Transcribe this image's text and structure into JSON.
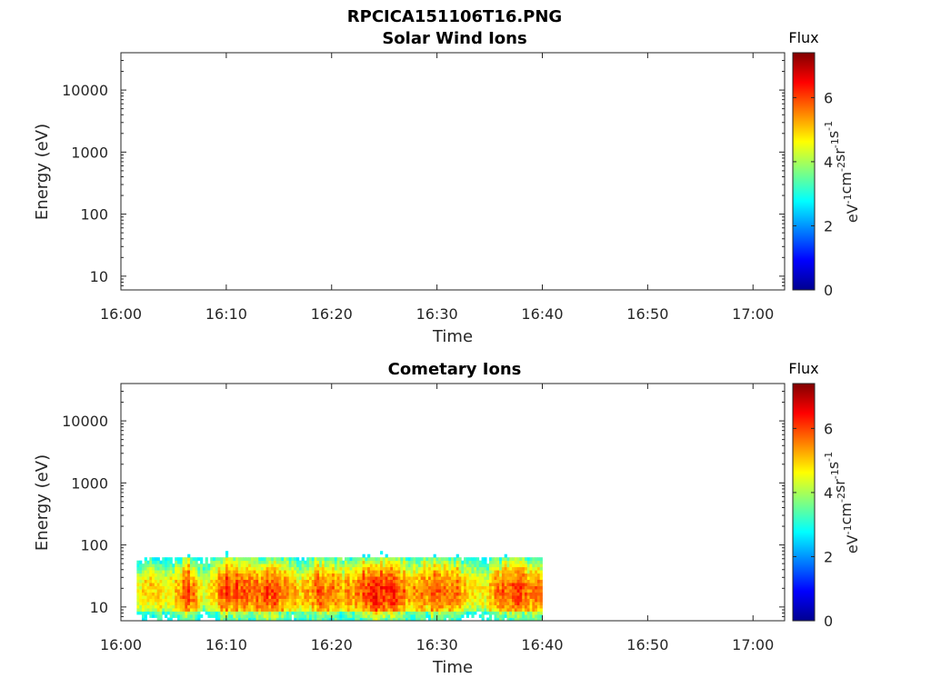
{
  "figure": {
    "title": "RPCICA151106T16.PNG"
  },
  "colorbar": {
    "label": "Flux",
    "unit_base": "eV",
    "unit_parts": [
      {
        "base": "eV",
        "exp": "-1"
      },
      {
        "base": "cm",
        "exp": "-2"
      },
      {
        "base": "sr",
        "exp": "-1"
      },
      {
        "base": "s",
        "exp": "-1"
      }
    ],
    "min": 0,
    "max": 7.4,
    "ticks": [
      "0",
      "2",
      "4",
      "6"
    ],
    "tick_values": [
      0,
      2,
      4,
      6
    ],
    "colormap": "jet",
    "colors": [
      "#00008F",
      "#0000FF",
      "#00FFFF",
      "#FFFF00",
      "#FF0000",
      "#800000"
    ]
  },
  "chart_data": [
    {
      "type": "heatmap",
      "title": "Solar Wind Ions",
      "xlabel": "Time",
      "ylabel": "Energy (eV)",
      "xticks": [
        "16:00",
        "16:10",
        "16:20",
        "16:30",
        "16:40",
        "16:50",
        "17:00"
      ],
      "xtick_minutes": [
        0,
        10,
        20,
        30,
        40,
        50,
        60
      ],
      "xlim_minutes": [
        0,
        63
      ],
      "yscale": "log",
      "ylim": [
        6,
        40000
      ],
      "yticks": [
        "10",
        "100",
        "1000",
        "10000"
      ],
      "ytick_values": [
        10,
        100,
        1000,
        10000
      ],
      "data_present": false
    },
    {
      "type": "heatmap",
      "title": "Cometary Ions",
      "xlabel": "Time",
      "ylabel": "Energy (eV)",
      "xticks": [
        "16:00",
        "16:10",
        "16:20",
        "16:30",
        "16:40",
        "16:50",
        "17:00"
      ],
      "xtick_minutes": [
        0,
        10,
        20,
        30,
        40,
        50,
        60
      ],
      "xlim_minutes": [
        0,
        63
      ],
      "yscale": "log",
      "ylim": [
        6,
        40000
      ],
      "yticks": [
        "10",
        "100",
        "1000",
        "10000"
      ],
      "ytick_values": [
        10,
        100,
        1000,
        10000
      ],
      "data_present": true,
      "time_range_minutes": [
        1.5,
        40
      ],
      "energy_range_ev": [
        6,
        80
      ],
      "flux_profile_by_time": [
        {
          "t": 1.5,
          "flux": 5.0
        },
        {
          "t": 3.0,
          "flux": 5.6
        },
        {
          "t": 4.5,
          "flux": 5.1
        },
        {
          "t": 6.5,
          "flux": 6.4
        },
        {
          "t": 8.0,
          "flux": 4.7
        },
        {
          "t": 10.0,
          "flux": 6.6
        },
        {
          "t": 12.0,
          "flux": 6.1
        },
        {
          "t": 14.5,
          "flux": 6.5
        },
        {
          "t": 17.0,
          "flux": 5.4
        },
        {
          "t": 19.0,
          "flux": 6.3
        },
        {
          "t": 21.0,
          "flux": 5.6
        },
        {
          "t": 23.0,
          "flux": 6.4
        },
        {
          "t": 25.5,
          "flux": 6.7
        },
        {
          "t": 28.0,
          "flux": 5.6
        },
        {
          "t": 30.0,
          "flux": 6.5
        },
        {
          "t": 32.0,
          "flux": 5.9
        },
        {
          "t": 34.0,
          "flux": 5.0
        },
        {
          "t": 36.0,
          "flux": 6.0
        },
        {
          "t": 38.0,
          "flux": 6.4
        },
        {
          "t": 40.0,
          "flux": 5.7
        }
      ]
    }
  ]
}
